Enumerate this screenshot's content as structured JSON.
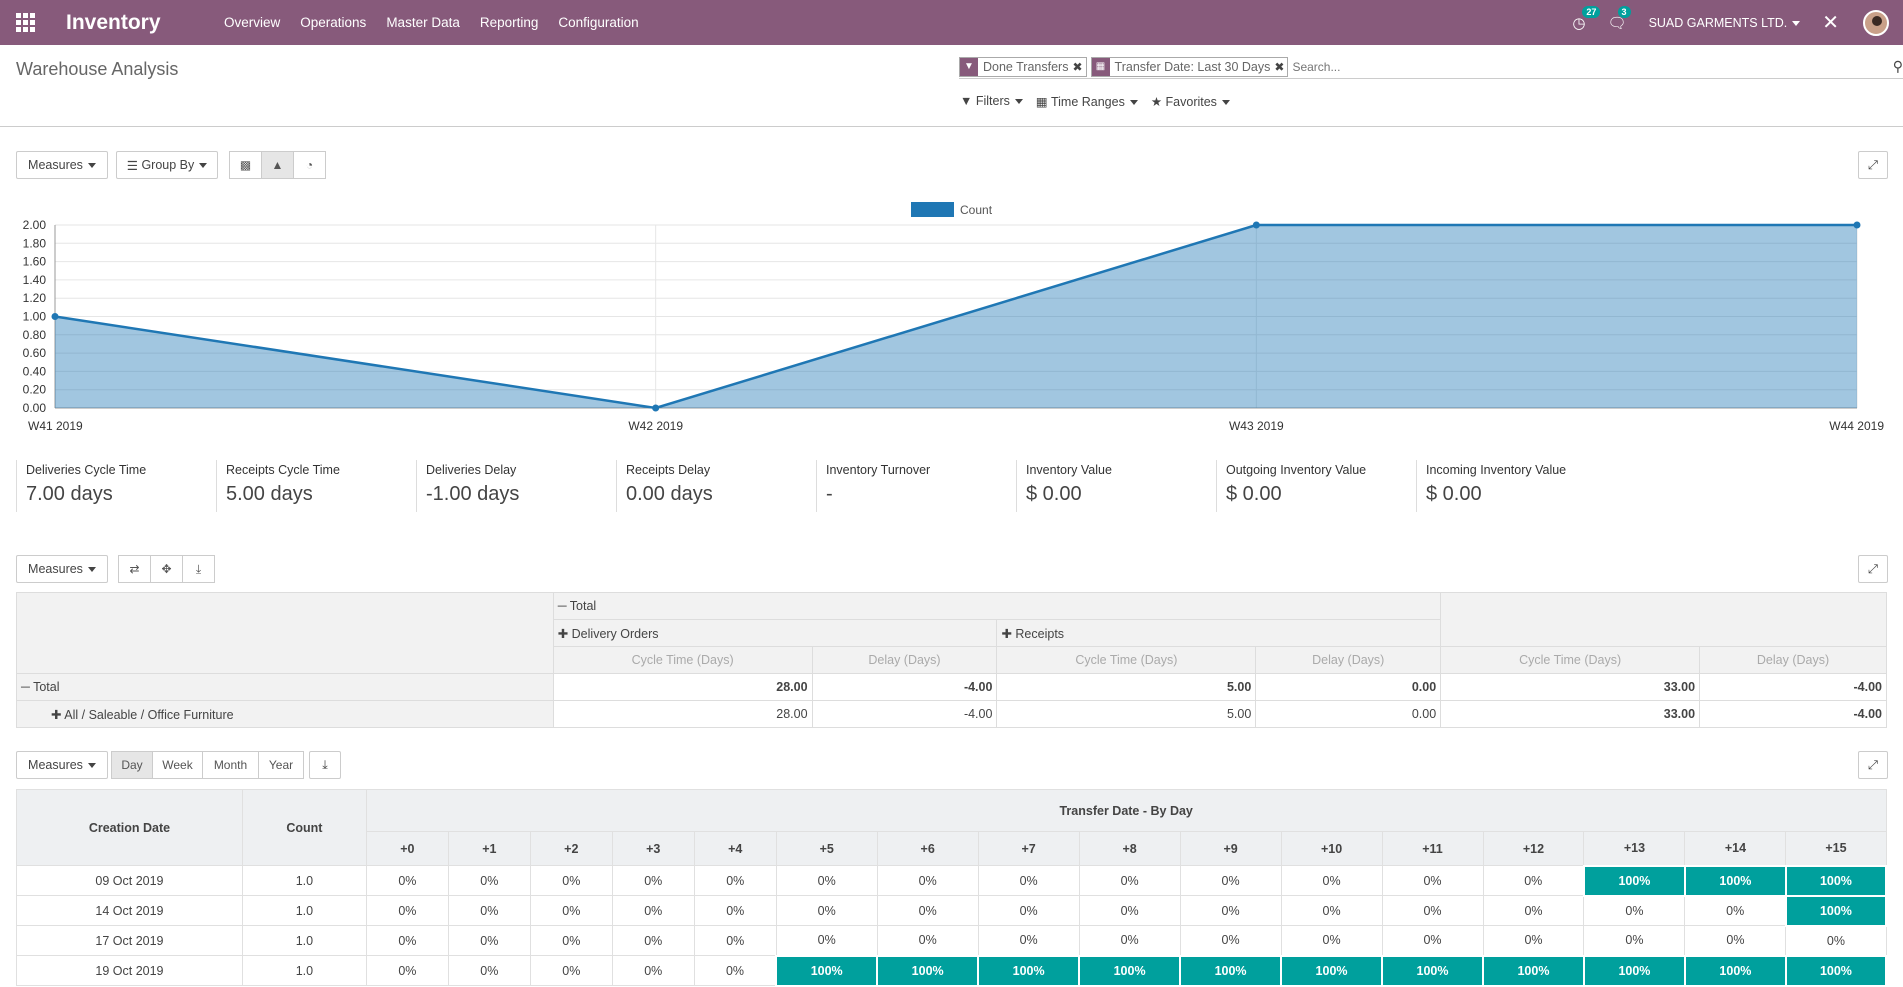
{
  "navbar": {
    "brand": "Inventory",
    "menu": [
      "Overview",
      "Operations",
      "Master Data",
      "Reporting",
      "Configuration"
    ],
    "activity_count": "27",
    "message_count": "3",
    "company": "SUAD GARMENTS LTD."
  },
  "control_panel": {
    "title": "Warehouse Analysis",
    "facets": [
      {
        "icon": "filter-icon",
        "label": "Done Transfers"
      },
      {
        "icon": "calendar-icon",
        "label": "Transfer Date: Last 30 Days"
      }
    ],
    "search_placeholder": "Search...",
    "filters_label": "Filters",
    "time_ranges_label": "Time Ranges",
    "favorites_label": "Favorites"
  },
  "graph_view": {
    "measures_label": "Measures",
    "group_by_label": "Group By"
  },
  "chart_data": {
    "type": "area",
    "categories": [
      "W41 2019",
      "W42 2019",
      "W43 2019",
      "W44 2019"
    ],
    "series": [
      {
        "name": "Count",
        "values": [
          1,
          0,
          2,
          2
        ]
      }
    ],
    "ylim": [
      0,
      2
    ],
    "yticks": [
      "0.00",
      "0.20",
      "0.40",
      "0.60",
      "0.80",
      "1.00",
      "1.20",
      "1.40",
      "1.60",
      "1.80",
      "2.00"
    ],
    "legend_position": "top-center",
    "color": "#1f77b4",
    "grid": true
  },
  "kpis": [
    {
      "label": "Deliveries Cycle Time",
      "value": "7.00 days"
    },
    {
      "label": "Receipts Cycle Time",
      "value": "5.00 days"
    },
    {
      "label": "Deliveries Delay",
      "value": "-1.00 days"
    },
    {
      "label": "Receipts Delay",
      "value": "0.00 days"
    },
    {
      "label": "Inventory Turnover",
      "value": "-"
    },
    {
      "label": "Inventory Value",
      "value": "$ 0.00"
    },
    {
      "label": "Outgoing Inventory Value",
      "value": "$ 0.00"
    },
    {
      "label": "Incoming Inventory Value",
      "value": "$ 0.00"
    }
  ],
  "pivot": {
    "measures_label": "Measures",
    "col_total": "Total",
    "col_groups": [
      "Delivery Orders",
      "Receipts"
    ],
    "measure_names": [
      "Cycle Time (Days)",
      "Delay (Days)"
    ],
    "rows": [
      {
        "label": "Total",
        "values": [
          "28.00",
          "-4.00",
          "5.00",
          "0.00",
          "33.00",
          "-4.00"
        ]
      },
      {
        "label": "All / Saleable / Office Furniture",
        "values": [
          "28.00",
          "-4.00",
          "5.00",
          "0.00",
          "33.00",
          "-4.00"
        ]
      }
    ]
  },
  "cohort": {
    "measures_label": "Measures",
    "intervals": [
      "Day",
      "Week",
      "Month",
      "Year"
    ],
    "col_date": "Creation Date",
    "col_count": "Count",
    "col_group": "Transfer Date - By Day",
    "offsets": [
      "+0",
      "+1",
      "+2",
      "+3",
      "+4",
      "+5",
      "+6",
      "+7",
      "+8",
      "+9",
      "+10",
      "+11",
      "+12",
      "+13",
      "+14",
      "+15"
    ],
    "rows": [
      {
        "date": "09 Oct 2019",
        "count": "1.0",
        "cells": [
          "0%",
          "0%",
          "0%",
          "0%",
          "0%",
          "0%",
          "0%",
          "0%",
          "0%",
          "0%",
          "0%",
          "0%",
          "0%",
          "100%",
          "100%",
          "100%"
        ]
      },
      {
        "date": "14 Oct 2019",
        "count": "1.0",
        "cells": [
          "0%",
          "0%",
          "0%",
          "0%",
          "0%",
          "0%",
          "0%",
          "0%",
          "0%",
          "0%",
          "0%",
          "0%",
          "0%",
          "0%",
          "0%",
          "100%"
        ]
      },
      {
        "date": "17 Oct 2019",
        "count": "1.0",
        "cells": [
          "0%",
          "0%",
          "0%",
          "0%",
          "0%",
          "0%",
          "0%",
          "0%",
          "0%",
          "0%",
          "0%",
          "0%",
          "0%",
          "0%",
          "0%",
          "0%"
        ]
      },
      {
        "date": "19 Oct 2019",
        "count": "1.0",
        "cells": [
          "0%",
          "0%",
          "0%",
          "0%",
          "0%",
          "100%",
          "100%",
          "100%",
          "100%",
          "100%",
          "100%",
          "100%",
          "100%",
          "100%",
          "100%",
          "100%"
        ]
      }
    ]
  }
}
